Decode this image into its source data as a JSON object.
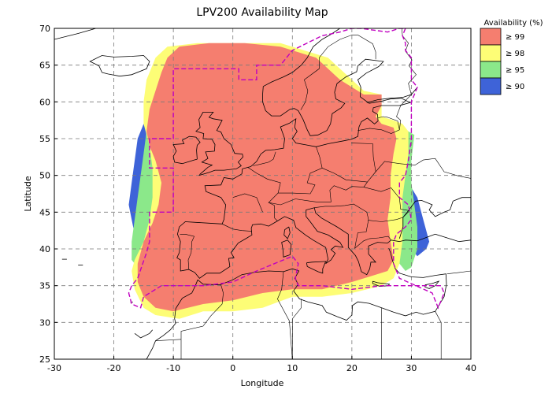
{
  "title": "LPV200 Availability Map",
  "xlabel": "Longitude",
  "ylabel": "Latitude",
  "legend": {
    "title": "Availability (%)",
    "items": [
      {
        "label": "≥ 99",
        "color": "#f57e6f"
      },
      {
        "label": "≥ 98",
        "color": "#fdfd76"
      },
      {
        "label": "≥ 95",
        "color": "#8be88a"
      },
      {
        "label": "≥ 90",
        "color": "#3e63d8"
      }
    ]
  },
  "chart_data": {
    "type": "heatmap",
    "title": "LPV200 Availability Map",
    "xlabel": "Longitude",
    "ylabel": "Latitude",
    "xlim": [
      -30,
      40
    ],
    "ylim": [
      25,
      70
    ],
    "xticks": [
      "-30",
      "-20",
      "-10",
      "0",
      "10",
      "20",
      "30",
      "40"
    ],
    "yticks": [
      "25",
      "30",
      "35",
      "40",
      "45",
      "50",
      "55",
      "60",
      "65",
      "70"
    ],
    "grid": true,
    "legend_placement": "outside-right",
    "levels": [
      {
        "label": "≥ 99",
        "min_availability": 99,
        "color": "#f57e6f"
      },
      {
        "label": "≥ 98",
        "min_availability": 98,
        "color": "#fdfd76"
      },
      {
        "label": "≥ 95",
        "min_availability": 95,
        "color": "#8be88a"
      },
      {
        "label": "≥ 90",
        "min_availability": 90,
        "color": "#3e63d8"
      }
    ],
    "region_colors": {
      "boundary": "#c000c0",
      "coastline": "#000000"
    }
  }
}
